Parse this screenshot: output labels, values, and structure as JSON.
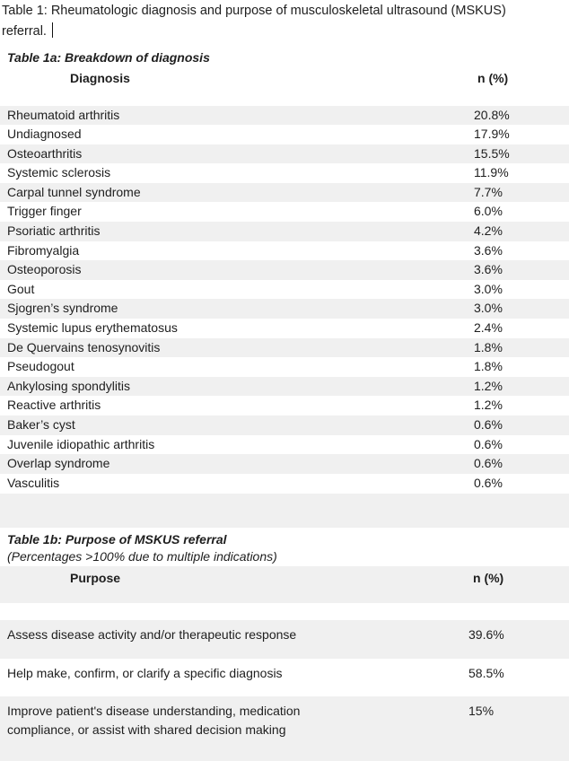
{
  "document": {
    "title": "Table 1: Rheumatologic diagnosis and purpose of musculoskeletal ultrasound (MSKUS) referral."
  },
  "table_1a": {
    "heading": "Table 1a: Breakdown of diagnosis",
    "columns": [
      "Diagnosis",
      "n (%)"
    ],
    "rows": [
      {
        "label": "Rheumatoid arthritis",
        "value": "20.8%"
      },
      {
        "label": "Undiagnosed",
        "value": "17.9%"
      },
      {
        "label": "Osteoarthritis",
        "value": "15.5%"
      },
      {
        "label": "Systemic sclerosis",
        "value": "11.9%"
      },
      {
        "label": "Carpal tunnel syndrome",
        "value": "7.7%"
      },
      {
        "label": "Trigger finger",
        "value": "6.0%"
      },
      {
        "label": "Psoriatic arthritis",
        "value": "4.2%"
      },
      {
        "label": "Fibromyalgia",
        "value": "3.6%"
      },
      {
        "label": "Osteoporosis",
        "value": "3.6%"
      },
      {
        "label": "Gout",
        "value": "3.0%"
      },
      {
        "label": "Sjogren’s syndrome",
        "value": "3.0%"
      },
      {
        "label": "Systemic lupus erythematosus",
        "value": "2.4%"
      },
      {
        "label": "De Quervains tenosynovitis",
        "value": "1.8%"
      },
      {
        "label": "Pseudogout",
        "value": "1.8%"
      },
      {
        "label": "Ankylosing spondylitis",
        "value": "1.2%"
      },
      {
        "label": "Reactive arthritis",
        "value": "1.2%"
      },
      {
        "label": "Baker’s cyst",
        "value": "0.6%"
      },
      {
        "label": "Juvenile idiopathic arthritis",
        "value": "0.6%"
      },
      {
        "label": "Overlap syndrome",
        "value": "0.6%"
      },
      {
        "label": "Vasculitis",
        "value": "0.6%"
      }
    ]
  },
  "table_1b": {
    "heading": "Table 1b: Purpose of MSKUS referral",
    "note": "(Percentages >100% due to multiple indications)",
    "columns": [
      "Purpose",
      "n (%)"
    ],
    "rows": [
      {
        "label": "Assess disease activity and/or therapeutic response",
        "value": "39.6%"
      },
      {
        "label": "Help make, confirm, or clarify a specific diagnosis",
        "value": "58.5%"
      },
      {
        "label": "Improve patient's disease understanding, medication compliance, or assist with shared decision making",
        "value": "15%"
      }
    ]
  },
  "colors": {
    "row_shade": "#f0f0f0",
    "text": "#1e1e1e",
    "background": "#ffffff"
  }
}
